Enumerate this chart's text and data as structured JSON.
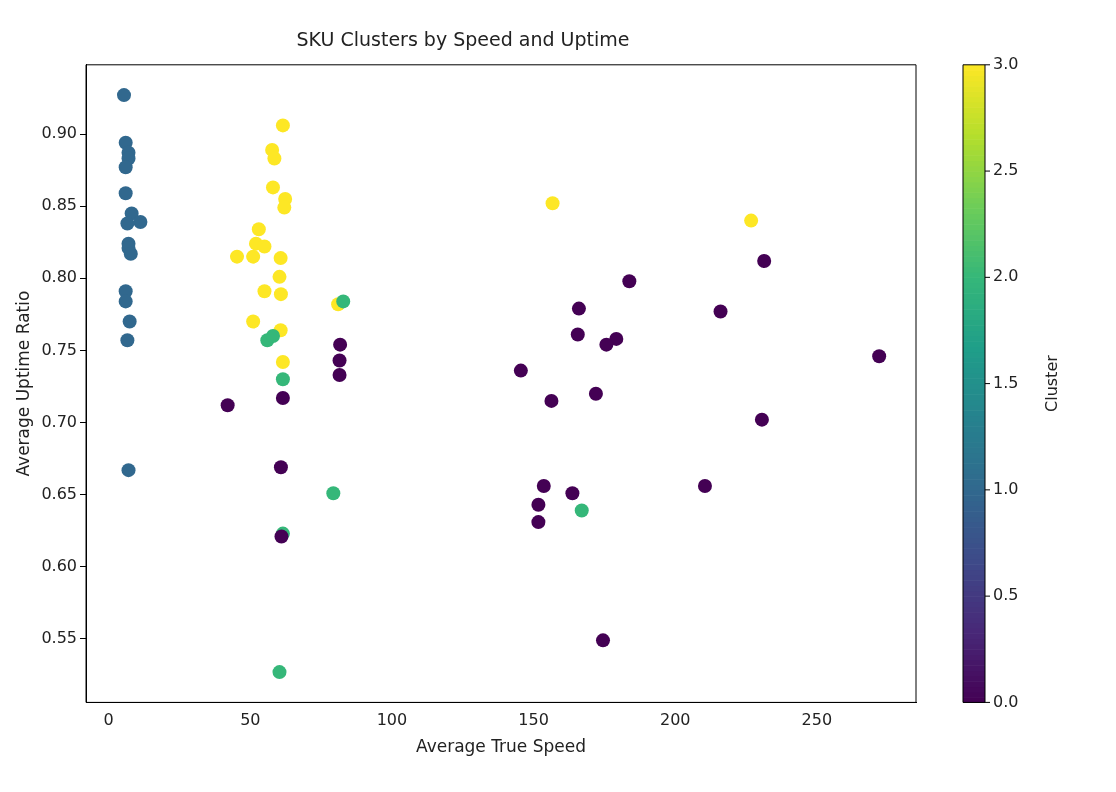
{
  "chart_data": {
    "type": "scatter",
    "title": "SKU Clusters by Speed and Uptime",
    "xlabel": "Average True Speed",
    "ylabel": "Average Uptime Ratio",
    "clabel": "Cluster",
    "x": [
      5.4,
      6,
      7,
      7,
      6,
      6,
      8.1,
      11.2,
      6.6,
      7,
      7,
      7.8,
      6,
      6,
      7.4,
      6.6,
      7,
      61.5,
      57.7,
      58.5,
      58,
      62.3,
      62,
      53,
      52,
      55,
      45.3,
      51,
      60.7,
      60.3,
      55,
      60.8,
      51,
      60.7,
      61.5,
      81,
      156.7,
      226.8,
      56,
      58,
      61.5,
      82.8,
      79.3,
      61.5,
      60.3,
      167,
      42,
      61.5,
      60.8,
      61,
      81.7,
      81.5,
      81.5,
      231.4,
      183.8,
      166,
      216,
      165.6,
      179.2,
      175.7,
      272,
      145.5,
      156.3,
      172,
      230.6,
      153.6,
      163.7,
      151.7,
      151.7,
      210.5,
      174.5
    ],
    "values": [
      0.927,
      0.894,
      0.887,
      0.883,
      0.877,
      0.859,
      0.845,
      0.839,
      0.838,
      0.824,
      0.821,
      0.817,
      0.791,
      0.784,
      0.77,
      0.757,
      0.667,
      0.906,
      0.889,
      0.883,
      0.863,
      0.855,
      0.849,
      0.834,
      0.824,
      0.822,
      0.815,
      0.815,
      0.814,
      0.801,
      0.791,
      0.789,
      0.77,
      0.764,
      0.742,
      0.782,
      0.852,
      0.84,
      0.757,
      0.76,
      0.73,
      0.784,
      0.651,
      0.623,
      0.527,
      0.639,
      0.712,
      0.717,
      0.669,
      0.621,
      0.754,
      0.743,
      0.733,
      0.812,
      0.798,
      0.779,
      0.777,
      0.761,
      0.758,
      0.754,
      0.746,
      0.736,
      0.715,
      0.72,
      0.702,
      0.656,
      0.651,
      0.643,
      0.631,
      0.656,
      0.549
    ],
    "cvalues": [
      1,
      1,
      1,
      1,
      1,
      1,
      1,
      1,
      1,
      1,
      1,
      1,
      1,
      1,
      1,
      1,
      1,
      3,
      3,
      3,
      3,
      3,
      3,
      3,
      3,
      3,
      3,
      3,
      3,
      3,
      3,
      3,
      3,
      3,
      3,
      3,
      3,
      3,
      2,
      2,
      2,
      2,
      2,
      2,
      2,
      2,
      0,
      0,
      0,
      0,
      0,
      0,
      0,
      0,
      0,
      0,
      0,
      0,
      0,
      0,
      0,
      0,
      0,
      0,
      0,
      0,
      0,
      0,
      0,
      0,
      0
    ],
    "xlim": [
      -8,
      285
    ],
    "xticks": [
      0,
      50,
      100,
      150,
      200,
      250
    ],
    "ylim": [
      0.506,
      0.948
    ],
    "yticks": [
      {
        "value": 0.55,
        "label": "0.55"
      },
      {
        "value": 0.6,
        "label": "0.60"
      },
      {
        "value": 0.65,
        "label": "0.65"
      },
      {
        "value": 0.7,
        "label": "0.70"
      },
      {
        "value": 0.75,
        "label": "0.75"
      },
      {
        "value": 0.8,
        "label": "0.80"
      },
      {
        "value": 0.85,
        "label": "0.85"
      },
      {
        "value": 0.9,
        "label": "0.90"
      }
    ],
    "clim": [
      0,
      3
    ],
    "cticks": [
      {
        "value": 0,
        "label": "0.0"
      },
      {
        "value": 0.5,
        "label": "0.5"
      },
      {
        "value": 1,
        "label": "1.0"
      },
      {
        "value": 1.5,
        "label": "1.5"
      },
      {
        "value": 2,
        "label": "2.0"
      },
      {
        "value": 2.5,
        "label": "2.5"
      },
      {
        "value": 3,
        "label": "3.0"
      }
    ],
    "grid": false,
    "legend": false,
    "marker": "circle"
  }
}
